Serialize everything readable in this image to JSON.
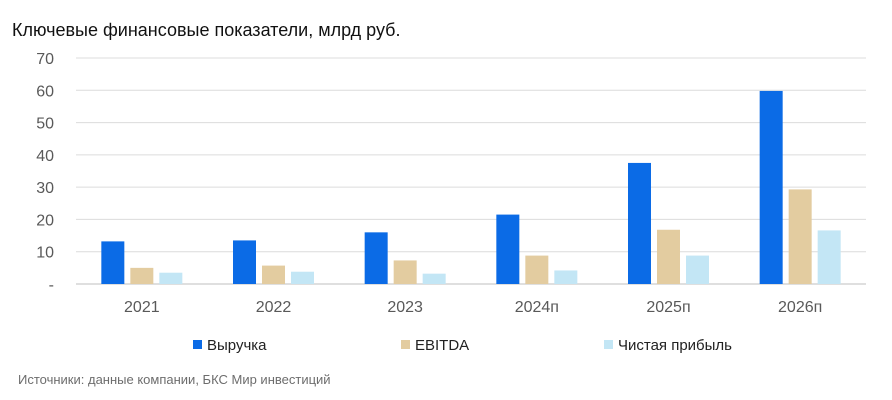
{
  "chart_data": {
    "type": "bar",
    "title": "Ключевые финансовые показатели, млрд руб.",
    "categories": [
      "2021",
      "2022",
      "2023",
      "2024п",
      "2025п",
      "2026п"
    ],
    "series": [
      {
        "name": "Выручка",
        "color": "#0b6be6",
        "values": [
          13.2,
          13.5,
          16.0,
          21.5,
          37.5,
          59.8
        ]
      },
      {
        "name": "EBITDA",
        "color": "#e3cca0",
        "values": [
          5.0,
          5.7,
          7.3,
          8.8,
          16.8,
          29.3
        ]
      },
      {
        "name": "Чистая прибыль",
        "color": "#c3e6f5",
        "values": [
          3.5,
          3.8,
          3.2,
          4.2,
          8.8,
          16.6
        ]
      }
    ],
    "ylim": [
      0,
      70
    ],
    "yticks": [
      "-",
      "10",
      "20",
      "30",
      "40",
      "50",
      "60",
      "70"
    ],
    "grid": true,
    "legend": "bottom"
  },
  "source": "Источники: данные компании, БКС Мир инвестиций"
}
